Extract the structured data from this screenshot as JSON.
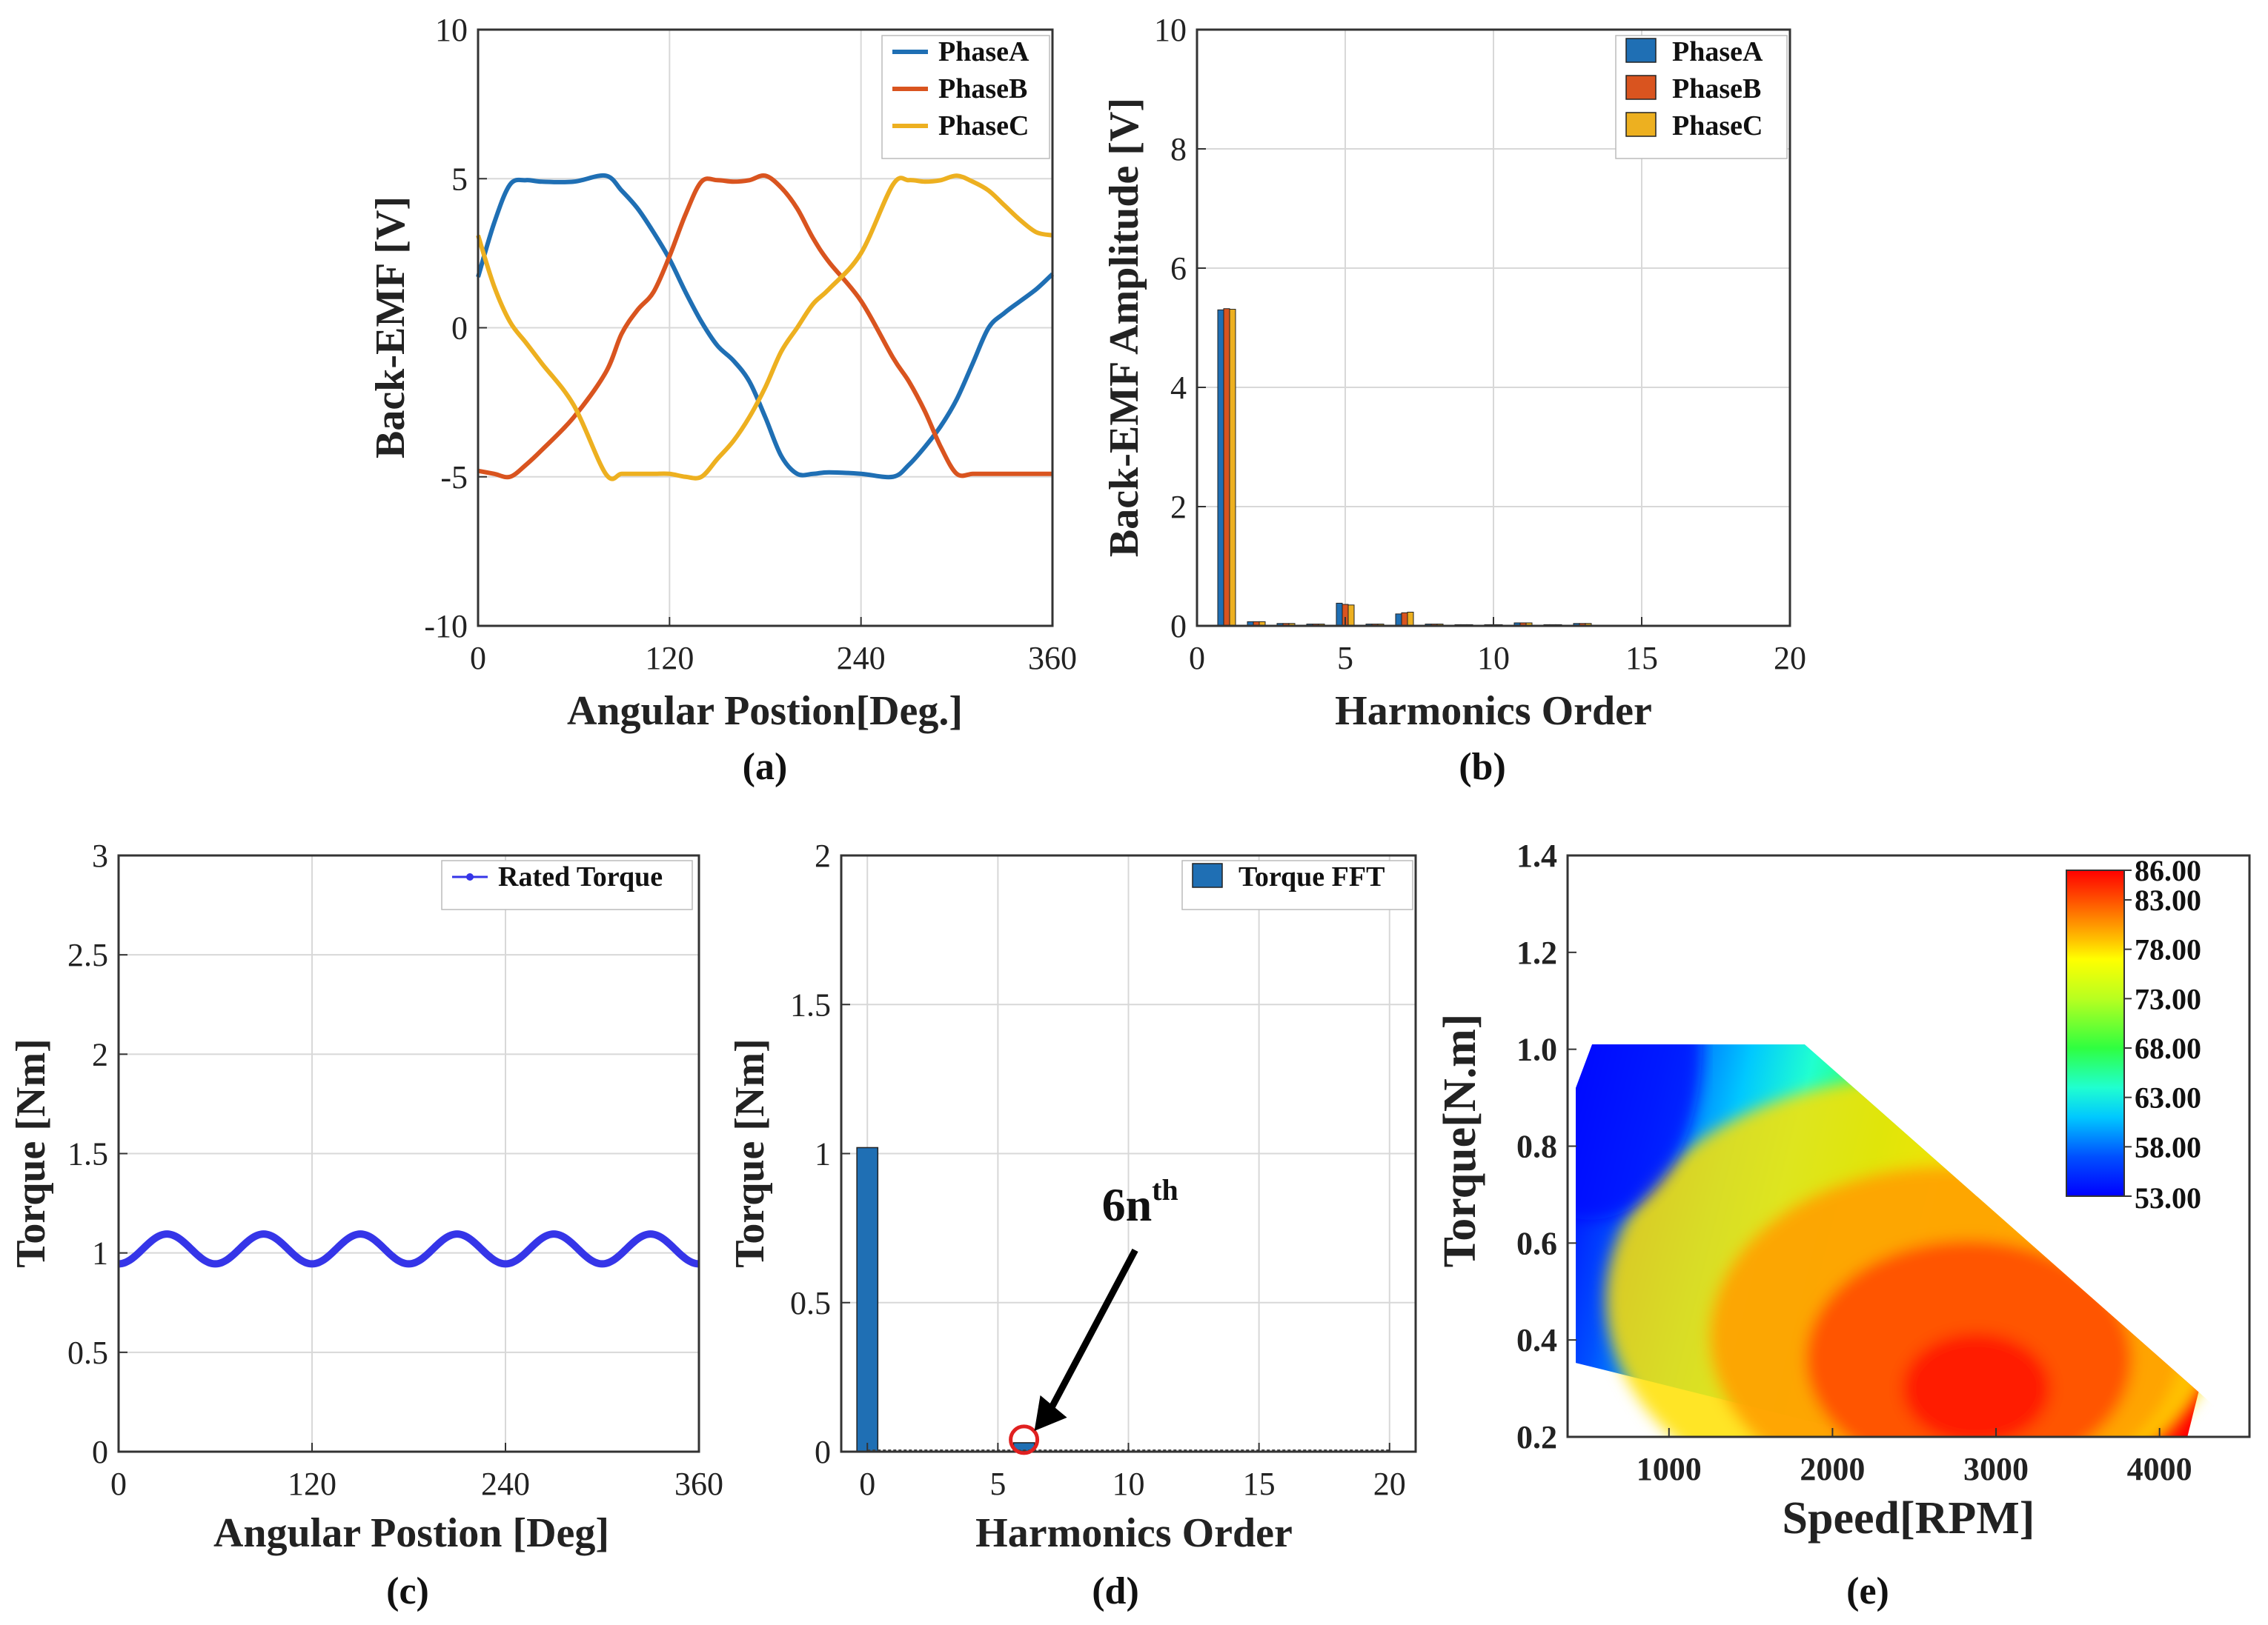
{
  "chart_data": [
    {
      "type": "line",
      "panel": "(a)",
      "xlabel": "Angular Postion[Deg.]",
      "ylabel": "Back-EMF [V]",
      "xlim": [
        0,
        360
      ],
      "ylim": [
        -10,
        10
      ],
      "xticks": [
        0,
        120,
        240,
        360
      ],
      "yticks": [
        -10,
        -5,
        0,
        5,
        10
      ],
      "grid": true,
      "legend_position": "top-right",
      "x": [
        0,
        10,
        20,
        30,
        40,
        60,
        80,
        90,
        100,
        110,
        120,
        130,
        140,
        150,
        160,
        170,
        180,
        190,
        200,
        210,
        220,
        240,
        260,
        270,
        280,
        290,
        300,
        310,
        320,
        330,
        340,
        350,
        360
      ],
      "series": [
        {
          "name": "PhaseA",
          "color": "#1f6fb4",
          "values": [
            1.7,
            3.5,
            4.8,
            4.95,
            4.9,
            4.9,
            5.1,
            4.6,
            4.0,
            3.2,
            2.3,
            1.2,
            0.2,
            -0.6,
            -1.1,
            -1.8,
            -3.0,
            -4.3,
            -4.9,
            -4.9,
            -4.85,
            -4.9,
            -5.0,
            -4.6,
            -4.0,
            -3.3,
            -2.4,
            -1.2,
            0.0,
            0.5,
            0.9,
            1.3,
            1.8
          ]
        },
        {
          "name": "PhaseB",
          "color": "#d9541f",
          "values": [
            -4.8,
            -4.9,
            -5.0,
            -4.6,
            -4.1,
            -3.0,
            -1.5,
            -0.2,
            0.6,
            1.2,
            2.4,
            3.8,
            4.9,
            4.95,
            4.9,
            4.95,
            5.1,
            4.7,
            4.0,
            3.0,
            2.2,
            0.9,
            -1.0,
            -1.8,
            -2.8,
            -4.0,
            -4.9,
            -4.9,
            -4.9,
            -4.9,
            -4.9,
            -4.9,
            -4.9
          ]
        },
        {
          "name": "PhaseC",
          "color": "#edb020",
          "values": [
            3.1,
            1.4,
            0.2,
            -0.5,
            -1.2,
            -2.6,
            -4.9,
            -4.9,
            -4.9,
            -4.9,
            -4.9,
            -5.0,
            -5.0,
            -4.4,
            -3.8,
            -3.0,
            -2.0,
            -0.8,
            0.0,
            0.8,
            1.3,
            2.5,
            4.8,
            4.95,
            4.9,
            4.95,
            5.1,
            4.9,
            4.6,
            4.1,
            3.6,
            3.2,
            3.1
          ]
        }
      ]
    },
    {
      "type": "bar",
      "panel": "(b)",
      "xlabel": "Harmonics Order",
      "ylabel": "Back-EMF Amplitude [V]",
      "xlim": [
        0,
        20
      ],
      "ylim": [
        0,
        10
      ],
      "xticks": [
        0,
        5,
        10,
        15,
        20
      ],
      "yticks": [
        0,
        2,
        4,
        6,
        8,
        10
      ],
      "grid": true,
      "legend_position": "top-right",
      "categories": [
        1,
        2,
        3,
        4,
        5,
        6,
        7,
        8,
        9,
        10,
        11,
        12,
        13,
        14,
        15,
        16,
        17,
        18,
        19
      ],
      "series": [
        {
          "name": "PhaseA",
          "color": "#1f6fb4",
          "values": [
            5.3,
            0.07,
            0.04,
            0.03,
            0.38,
            0.03,
            0.2,
            0.03,
            0.02,
            0.02,
            0.05,
            0.02,
            0.04,
            0.01,
            0.01,
            0.01,
            0.01,
            0.01,
            0.01
          ]
        },
        {
          "name": "PhaseB",
          "color": "#d9541f",
          "values": [
            5.32,
            0.07,
            0.04,
            0.03,
            0.36,
            0.03,
            0.22,
            0.03,
            0.02,
            0.02,
            0.05,
            0.02,
            0.04,
            0.01,
            0.01,
            0.01,
            0.01,
            0.01,
            0.01
          ]
        },
        {
          "name": "PhaseC",
          "color": "#edb020",
          "values": [
            5.31,
            0.07,
            0.04,
            0.03,
            0.35,
            0.03,
            0.23,
            0.03,
            0.02,
            0.02,
            0.05,
            0.02,
            0.04,
            0.01,
            0.01,
            0.01,
            0.01,
            0.01,
            0.01
          ]
        }
      ]
    },
    {
      "type": "line",
      "panel": "(c)",
      "xlabel": "Angular Postion [Deg]",
      "ylabel": "Torque [Nm]",
      "xlim": [
        0,
        360
      ],
      "ylim": [
        0,
        3
      ],
      "xticks": [
        0,
        120,
        240,
        360
      ],
      "yticks": [
        0,
        0.5,
        1,
        1.5,
        2,
        2.5,
        3
      ],
      "grid": true,
      "legend_position": "top-right",
      "series": [
        {
          "name": "Rated Torque",
          "color": "#3535e8",
          "mean": 1.02,
          "amplitude": 0.075,
          "period_deg": 60,
          "phase_deg": 15
        }
      ]
    },
    {
      "type": "bar",
      "panel": "(d)",
      "xlabel": "Harmonics Order",
      "ylabel": "Torque [Nm]",
      "xlim": [
        -1,
        21
      ],
      "ylim": [
        0,
        2
      ],
      "xticks": [
        0,
        5,
        10,
        15,
        20
      ],
      "yticks": [
        0,
        0.5,
        1,
        1.5,
        2
      ],
      "grid": true,
      "legend_position": "top-right",
      "categories": [
        0,
        6
      ],
      "series": [
        {
          "name": "Torque FFT",
          "color": "#1f6fb4",
          "values": [
            1.02,
            0.03
          ]
        }
      ],
      "annotation": {
        "text": "6n",
        "superscript": "th",
        "target_x": 6,
        "target_y": 0.03
      }
    },
    {
      "type": "heatmap",
      "panel": "(e)",
      "xlabel": "Speed[RPM]",
      "ylabel": "Torque[N.m]",
      "xlim": [
        380,
        4550
      ],
      "ylim": [
        0.2,
        1.4
      ],
      "xticks": [
        1000,
        2000,
        3000,
        4000
      ],
      "yticks": [
        0.2,
        0.4,
        0.6,
        0.8,
        1.0,
        1.2,
        1.4
      ],
      "ytick_labels": [
        "0.2",
        "0.4",
        "0.6",
        "0.8",
        "1.0",
        "1.2",
        "1.4"
      ],
      "grid": false,
      "colorbar": {
        "min": 53,
        "max": 86,
        "labels": [
          "53.00",
          "58.00",
          "63.00",
          "68.00",
          "73.00",
          "78.00",
          "83.00",
          "86.00"
        ],
        "values": [
          53,
          58,
          63,
          68,
          73,
          78,
          83,
          86
        ]
      },
      "boundary": [
        [
          430,
          0.2
        ],
        [
          430,
          0.92
        ],
        [
          530,
          1.01
        ],
        [
          1830,
          1.01
        ],
        [
          4550,
          0.2
        ]
      ],
      "peak": {
        "speed": 2880,
        "torque": 0.3,
        "efficiency": 86
      }
    }
  ],
  "panel_labels": {
    "a": "(a)",
    "b": "(b)",
    "c": "(c)",
    "d": "(d)",
    "e": "(e)"
  }
}
